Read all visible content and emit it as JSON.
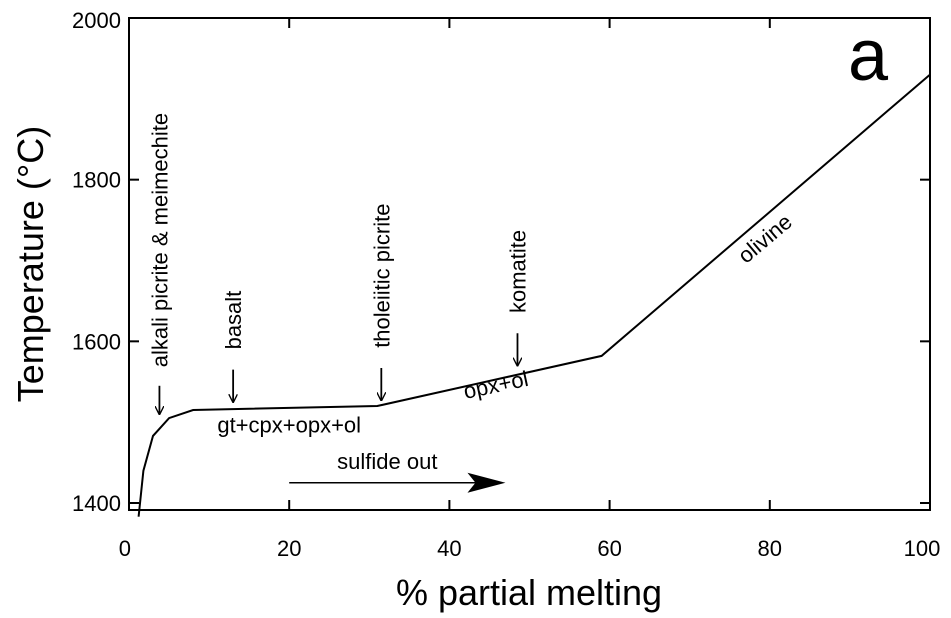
{
  "chart_data": {
    "type": "line",
    "title": "",
    "panel_label": "a",
    "xlabel": "% partial melting",
    "ylabel": "Temperature (°C)",
    "xlim": [
      0,
      100
    ],
    "ylim": [
      1400,
      2000
    ],
    "x_ticks": [
      0,
      20,
      40,
      60,
      80,
      100
    ],
    "y_ticks": [
      1400,
      1600,
      1800,
      2000
    ],
    "x_tick_labels": [
      "0",
      "20",
      "40",
      "60",
      "80",
      "100"
    ],
    "y_tick_labels": [
      "1400",
      "1600",
      "1800",
      "2000"
    ],
    "grid": false,
    "series": [
      {
        "x": [
          1.2,
          1.8,
          3,
          5,
          8,
          31,
          59,
          100
        ],
        "y": [
          1383,
          1440,
          1483,
          1505,
          1515,
          1520,
          1582,
          1930
        ]
      }
    ],
    "region_labels": [
      {
        "text": "gt+cpx+opx+ol",
        "x": 20,
        "y": 1487,
        "rotate": 0
      },
      {
        "text": "opx+ol",
        "x": 46,
        "y": 1537,
        "rotate": -12
      },
      {
        "text": "olivine",
        "x": 80,
        "y": 1720,
        "rotate": -40
      }
    ],
    "arrow_annotations": [
      {
        "text": "alkali picrite & meimechite",
        "x": 3.8,
        "y_tip": 1510,
        "y_base": 1545,
        "text_y": 1568
      },
      {
        "text": "basalt",
        "x": 13,
        "y_tip": 1525,
        "y_base": 1565,
        "text_y": 1590
      },
      {
        "text": "tholeiitic picrite",
        "x": 31.5,
        "y_tip": 1527,
        "y_base": 1567,
        "text_y": 1592
      },
      {
        "text": "komatite",
        "x": 48.5,
        "y_tip": 1570,
        "y_base": 1610,
        "text_y": 1635
      }
    ],
    "range_arrow": {
      "text": "sulfide out",
      "x_start": 20,
      "x_end": 47,
      "y": 1425
    }
  }
}
